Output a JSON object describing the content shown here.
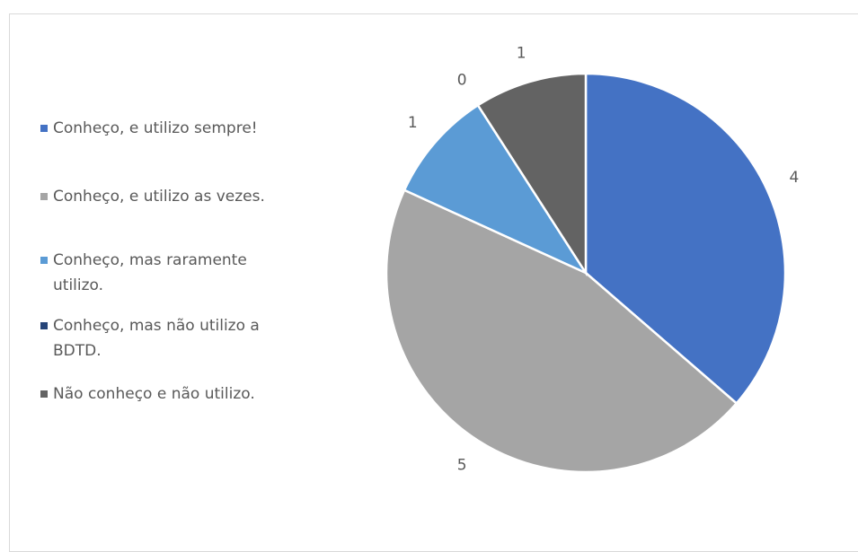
{
  "chart_data": {
    "type": "pie",
    "categories": [
      "Conheço, e utilizo sempre!",
      "Conheço, e utilizo as vezes.",
      "Conheço, mas raramente utilizo.",
      "Conheço, mas não utilizo a BDTD.",
      "Não conheço e não utilizo."
    ],
    "values": [
      4,
      5,
      1,
      0,
      1
    ],
    "colors": [
      "#4472c4",
      "#a5a5a5",
      "#5b9bd5",
      "#264478",
      "#636363"
    ],
    "legend": "left"
  }
}
